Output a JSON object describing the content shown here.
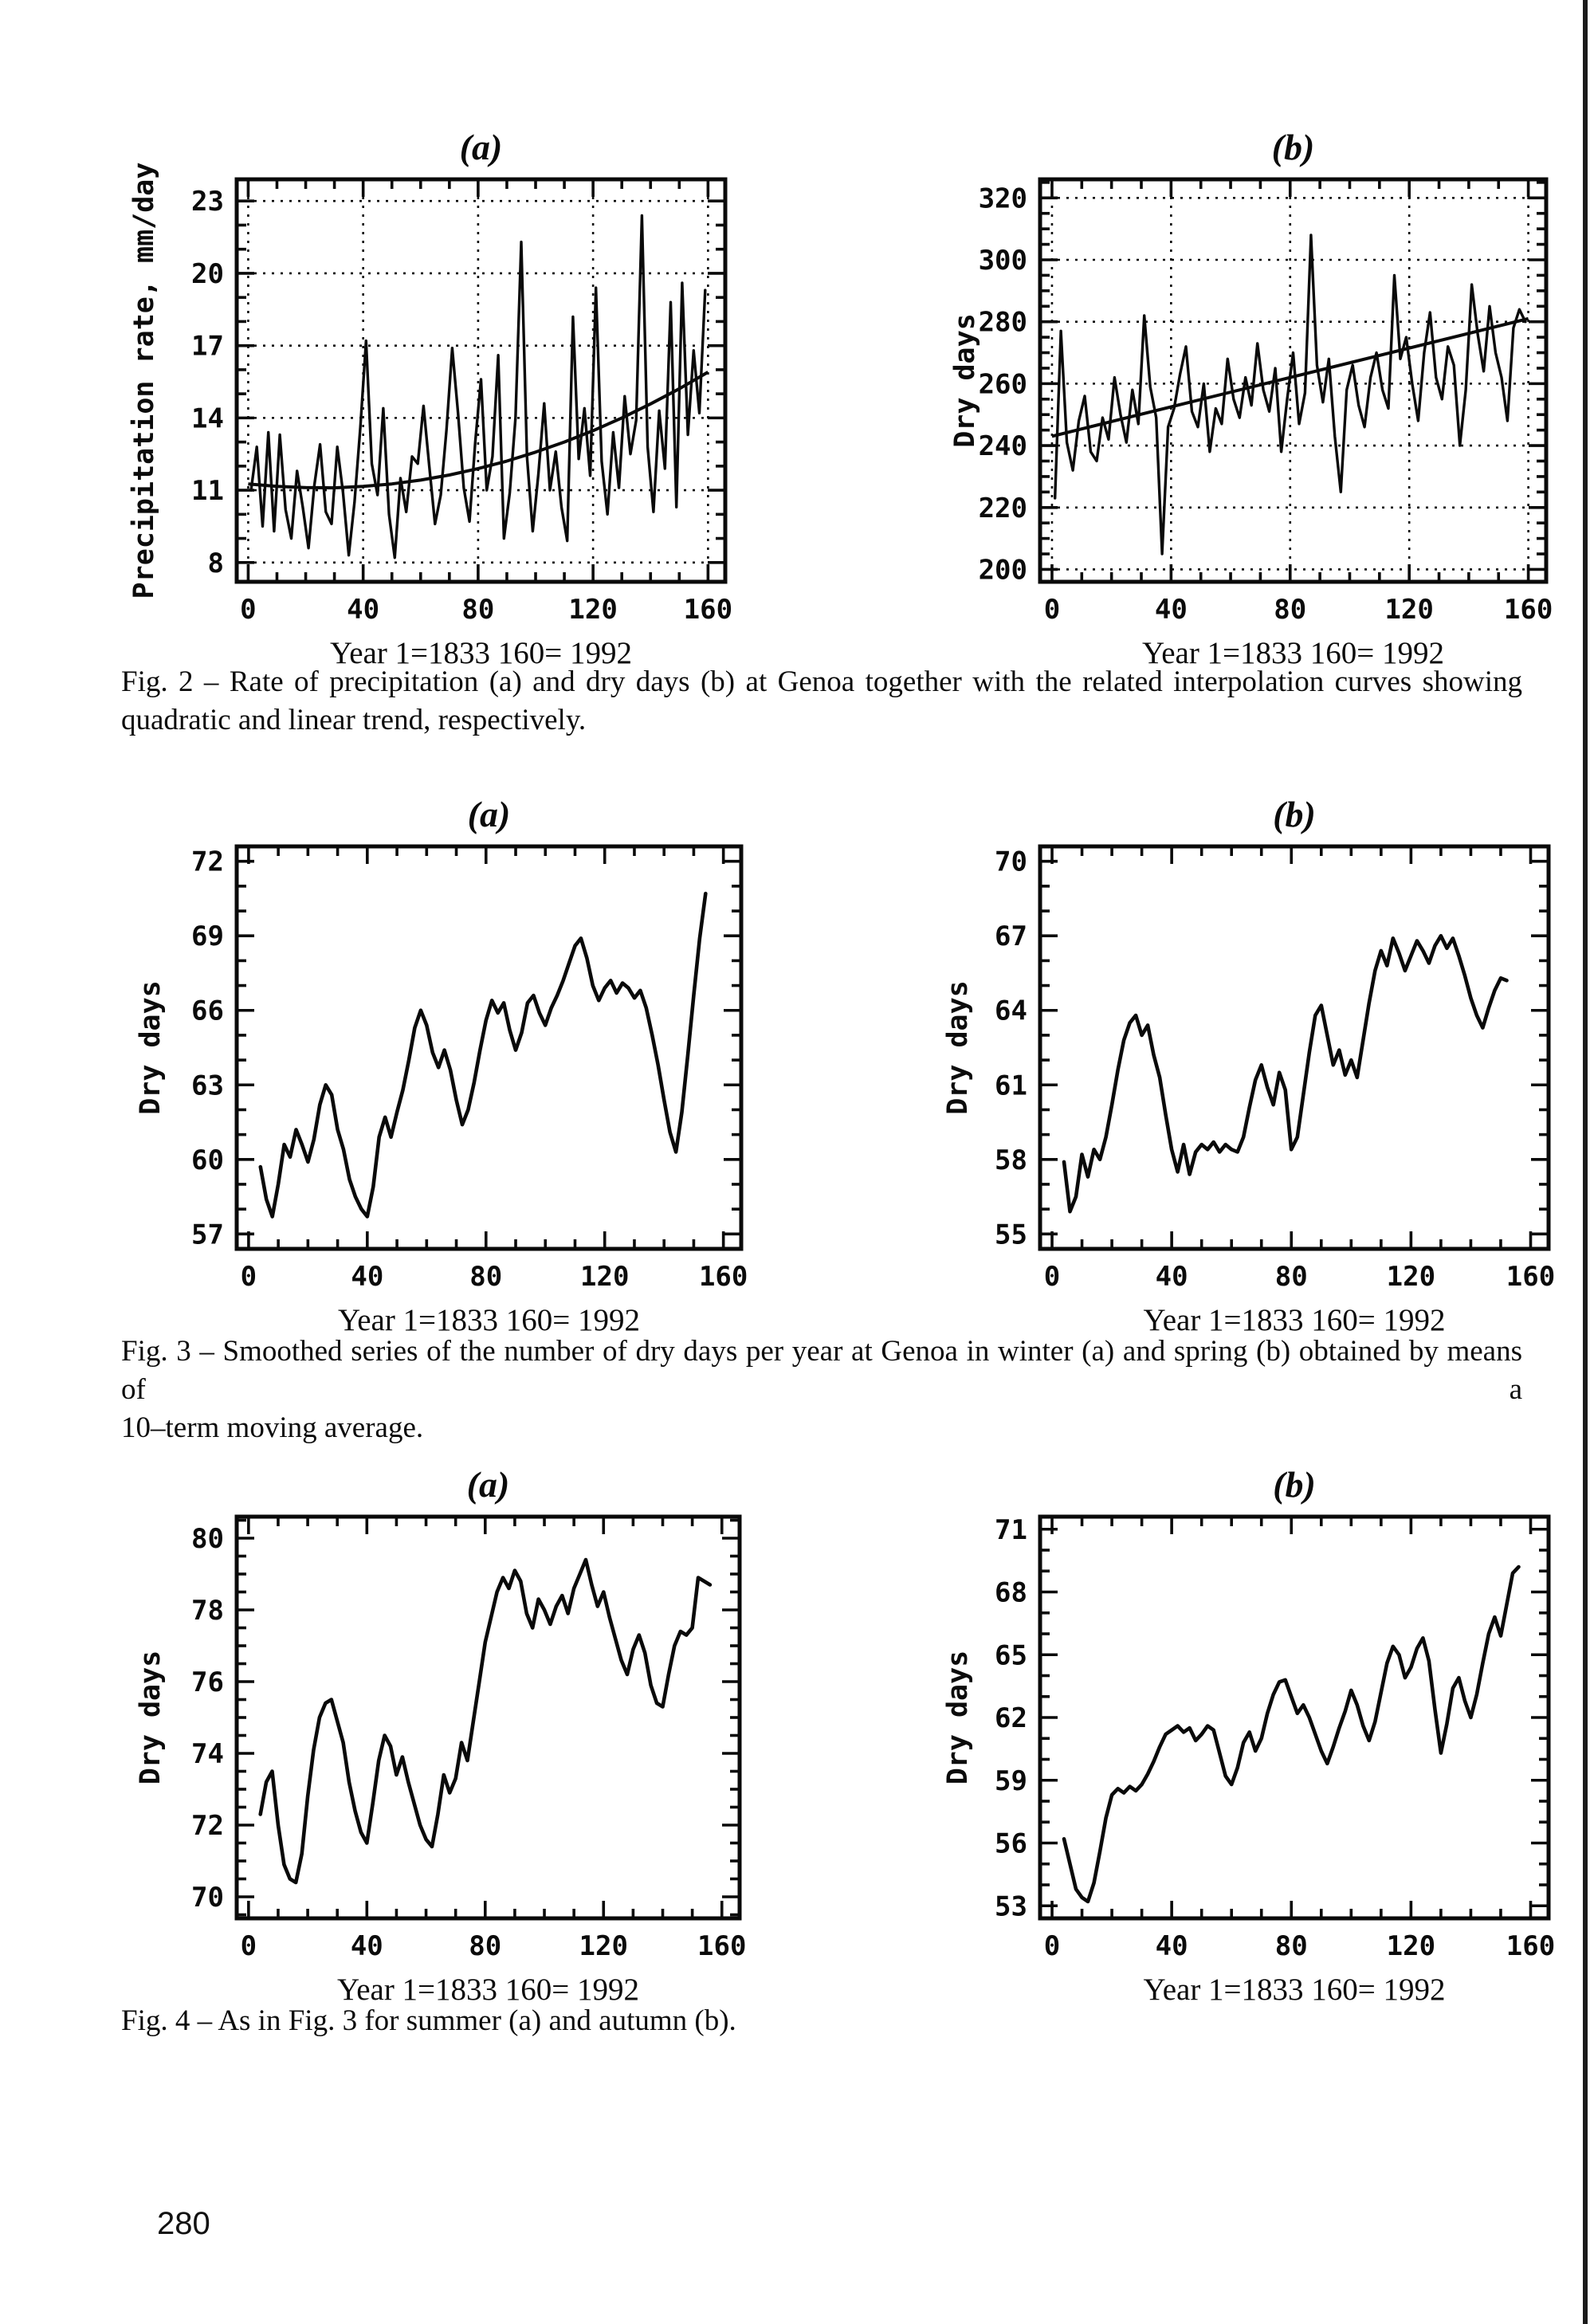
{
  "page": {
    "number": "280"
  },
  "captions": {
    "fig2": [
      "Fig. 2 –  Rate of precipitation (a) and dry days (b) at Genoa together with the related interpolation curves showing",
      "quadratic and linear trend, respectively."
    ],
    "fig3": [
      "Fig. 3 – Smoothed series of the number of dry days per year at Genoa in winter (a) and spring (b) obtained by means of a",
      "10–term moving average."
    ],
    "fig4": [
      "Fig. 4 – As in Fig. 3 for summer (a) and autumn (b)."
    ]
  },
  "ink_color": "#0a0a0a",
  "chart_data": [
    {
      "id": "fig2a",
      "type": "line",
      "panel_label": "(a)",
      "ylabel": "Precipitation rate, mm/day",
      "xlabel": "Year 1=1833 160= 1992",
      "ylim": [
        7.2,
        23.9
      ],
      "xlim": [
        -4,
        166
      ],
      "yticks": [
        8,
        11,
        14,
        17,
        20,
        23
      ],
      "xticks": [
        0,
        40,
        80,
        120,
        160
      ],
      "y_minor_step": 1,
      "x_minor_step": 10,
      "grid": true,
      "series": {
        "name": "annual precipitation rate",
        "x0": 1,
        "dx": 2,
        "values": [
          11.0,
          12.8,
          9.5,
          13.4,
          9.3,
          13.3,
          10.2,
          9.0,
          11.8,
          10.3,
          8.6,
          11.2,
          12.9,
          10.1,
          9.6,
          12.8,
          10.9,
          8.3,
          10.5,
          13.6,
          17.2,
          12.1,
          10.8,
          14.4,
          10.0,
          8.2,
          11.5,
          10.1,
          12.4,
          12.1,
          14.5,
          12.0,
          9.6,
          10.8,
          13.5,
          16.9,
          14.2,
          11.1,
          9.7,
          13.0,
          15.6,
          11.0,
          12.4,
          16.6,
          9.0,
          10.9,
          14.0,
          21.3,
          12.4,
          9.3,
          11.7,
          14.6,
          11.0,
          12.6,
          10.3,
          8.9,
          18.2,
          12.3,
          14.4,
          11.6,
          19.4,
          12.2,
          10.0,
          13.4,
          11.1,
          14.9,
          12.5,
          13.9,
          22.4,
          12.8,
          10.1,
          14.3,
          11.9,
          18.8,
          10.3,
          19.6,
          13.3,
          16.8,
          14.2,
          19.3
        ]
      },
      "trend": {
        "name": "quadratic trend",
        "x": [
          0,
          10,
          20,
          30,
          40,
          50,
          60,
          70,
          80,
          90,
          100,
          110,
          120,
          130,
          140,
          150,
          160
        ],
        "y": [
          11.26,
          11.16,
          11.11,
          11.1,
          11.16,
          11.26,
          11.42,
          11.63,
          11.9,
          12.21,
          12.58,
          13.0,
          13.47,
          14.0,
          14.58,
          15.21,
          15.9
        ]
      }
    },
    {
      "id": "fig2b",
      "type": "line",
      "panel_label": "(b)",
      "ylabel": "Dry days",
      "xlabel": "Year 1=1833 160= 1992",
      "ylim": [
        196,
        326
      ],
      "xlim": [
        -4,
        166
      ],
      "yticks": [
        200,
        220,
        240,
        260,
        280,
        300,
        320
      ],
      "xticks": [
        0,
        40,
        80,
        120,
        160
      ],
      "y_minor_step": 5,
      "x_minor_step": 10,
      "grid": true,
      "series": {
        "name": "annual dry days",
        "x0": 1,
        "dx": 2,
        "values": [
          223,
          277,
          241,
          232,
          248,
          256,
          238,
          235,
          249,
          242,
          262,
          250,
          241,
          258,
          247,
          282,
          259,
          249,
          205,
          246,
          252,
          263,
          272,
          251,
          246,
          260,
          238,
          252,
          247,
          268,
          255,
          249,
          262,
          253,
          273,
          258,
          251,
          265,
          238,
          255,
          270,
          247,
          257,
          308,
          266,
          254,
          268,
          243,
          225,
          258,
          266,
          253,
          246,
          262,
          270,
          258,
          252,
          295,
          268,
          275,
          260,
          248,
          270,
          283,
          262,
          255,
          272,
          266,
          240,
          258,
          292,
          276,
          264,
          285,
          270,
          262,
          248,
          278,
          284,
          280
        ]
      },
      "trend": {
        "name": "linear trend",
        "x": [
          0,
          160
        ],
        "y": [
          243,
          281
        ]
      }
    },
    {
      "id": "fig3a",
      "type": "line",
      "panel_label": "(a)",
      "ylabel": "Dry days",
      "xlabel": "Year 1=1833 160= 1992",
      "ylim": [
        56.4,
        72.6
      ],
      "xlim": [
        -4,
        166
      ],
      "yticks": [
        57,
        60,
        63,
        66,
        69,
        72
      ],
      "xticks": [
        0,
        40,
        80,
        120,
        160
      ],
      "y_minor_step": 1,
      "x_minor_step": 10,
      "grid": false,
      "series": {
        "name": "winter dry days (10-term moving average)",
        "x0": 4,
        "dx": 2,
        "values": [
          59.7,
          58.4,
          57.7,
          59.0,
          60.6,
          60.1,
          61.2,
          60.6,
          59.9,
          60.8,
          62.2,
          63.0,
          62.6,
          61.2,
          60.4,
          59.2,
          58.5,
          58.0,
          57.7,
          58.9,
          60.9,
          61.7,
          60.9,
          61.9,
          62.8,
          64.0,
          65.3,
          66.0,
          65.4,
          64.3,
          63.7,
          64.4,
          63.6,
          62.4,
          61.4,
          62.0,
          63.1,
          64.4,
          65.6,
          66.4,
          65.9,
          66.3,
          65.2,
          64.4,
          65.1,
          66.3,
          66.6,
          65.9,
          65.4,
          66.1,
          66.6,
          67.2,
          67.9,
          68.6,
          68.9,
          68.1,
          67.0,
          66.4,
          66.9,
          67.2,
          66.7,
          67.1,
          66.9,
          66.5,
          66.8,
          66.1,
          65.0,
          63.8,
          62.4,
          61.1,
          60.3,
          61.9,
          64.2,
          66.6,
          68.9,
          70.7
        ]
      },
      "trend": null
    },
    {
      "id": "fig3b",
      "type": "line",
      "panel_label": "(b)",
      "ylabel": "Dry days",
      "xlabel": "Year 1=1833 160= 1992",
      "ylim": [
        54.4,
        70.6
      ],
      "xlim": [
        -4,
        166
      ],
      "yticks": [
        55,
        58,
        61,
        64,
        67,
        70
      ],
      "xticks": [
        0,
        40,
        80,
        120,
        160
      ],
      "y_minor_step": 1,
      "x_minor_step": 10,
      "grid": false,
      "series": {
        "name": "spring dry days (10-term moving average)",
        "x0": 4,
        "dx": 2,
        "values": [
          57.9,
          55.9,
          56.5,
          58.2,
          57.3,
          58.4,
          58.0,
          58.9,
          60.2,
          61.6,
          62.8,
          63.5,
          63.8,
          63.0,
          63.4,
          62.2,
          61.3,
          59.8,
          58.4,
          57.5,
          58.6,
          57.4,
          58.3,
          58.6,
          58.4,
          58.7,
          58.3,
          58.6,
          58.4,
          58.3,
          58.9,
          60.1,
          61.2,
          61.8,
          60.9,
          60.2,
          61.5,
          60.8,
          58.4,
          58.9,
          60.6,
          62.3,
          63.8,
          64.2,
          63.0,
          61.8,
          62.4,
          61.4,
          62.0,
          61.3,
          62.8,
          64.3,
          65.6,
          66.4,
          65.8,
          66.9,
          66.3,
          65.6,
          66.2,
          66.8,
          66.4,
          65.9,
          66.6,
          67.0,
          66.5,
          66.9,
          66.2,
          65.4,
          64.5,
          63.8,
          63.3,
          64.1,
          64.8,
          65.3,
          65.2
        ]
      },
      "trend": null
    },
    {
      "id": "fig4a",
      "type": "line",
      "panel_label": "(a)",
      "ylabel": "Dry days",
      "xlabel": "Year 1=1833 160= 1992",
      "ylim": [
        69.4,
        80.6
      ],
      "xlim": [
        -4,
        166
      ],
      "yticks": [
        70,
        72,
        74,
        76,
        78,
        80
      ],
      "xticks": [
        0,
        40,
        80,
        120,
        160
      ],
      "y_minor_step": 0.5,
      "x_minor_step": 10,
      "grid": false,
      "series": {
        "name": "summer dry days (10-term moving average)",
        "x0": 4,
        "dx": 2,
        "values": [
          72.3,
          73.2,
          73.5,
          72.0,
          70.9,
          70.5,
          70.4,
          71.2,
          72.8,
          74.1,
          75.0,
          75.4,
          75.5,
          74.9,
          74.3,
          73.2,
          72.4,
          71.8,
          71.5,
          72.6,
          73.8,
          74.5,
          74.2,
          73.4,
          73.9,
          73.2,
          72.6,
          72.0,
          71.6,
          71.4,
          72.3,
          73.4,
          72.9,
          73.3,
          74.3,
          73.8,
          74.9,
          76.0,
          77.1,
          77.8,
          78.5,
          78.9,
          78.6,
          79.1,
          78.8,
          77.9,
          77.5,
          78.3,
          78.0,
          77.6,
          78.1,
          78.4,
          77.9,
          78.6,
          79.0,
          79.4,
          78.7,
          78.1,
          78.5,
          77.8,
          77.2,
          76.6,
          76.2,
          76.9,
          77.3,
          76.8,
          75.9,
          75.4,
          75.3,
          76.2,
          77.0,
          77.4,
          77.3,
          77.5,
          78.9,
          78.8,
          78.7
        ]
      },
      "trend": null
    },
    {
      "id": "fig4b",
      "type": "line",
      "panel_label": "(b)",
      "ylabel": "Dry days",
      "xlabel": "Year 1=1833 160= 1992",
      "ylim": [
        52.4,
        71.6
      ],
      "xlim": [
        -4,
        166
      ],
      "yticks": [
        53,
        56,
        59,
        62,
        65,
        68,
        71
      ],
      "xticks": [
        0,
        40,
        80,
        120,
        160
      ],
      "y_minor_step": 1,
      "x_minor_step": 10,
      "grid": false,
      "series": {
        "name": "autumn dry days (10-term moving average)",
        "x0": 4,
        "dx": 2,
        "values": [
          56.2,
          55.0,
          53.8,
          53.4,
          53.2,
          54.1,
          55.6,
          57.2,
          58.3,
          58.6,
          58.4,
          58.7,
          58.5,
          58.8,
          59.3,
          59.9,
          60.6,
          61.2,
          61.4,
          61.6,
          61.3,
          61.5,
          60.9,
          61.2,
          61.6,
          61.4,
          60.3,
          59.2,
          58.8,
          59.6,
          60.8,
          61.3,
          60.4,
          61.0,
          62.2,
          63.1,
          63.7,
          63.8,
          63.0,
          62.2,
          62.6,
          62.0,
          61.2,
          60.4,
          59.8,
          60.6,
          61.5,
          62.3,
          63.3,
          62.6,
          61.6,
          60.9,
          61.8,
          63.2,
          64.6,
          65.4,
          65.0,
          63.9,
          64.4,
          65.3,
          65.8,
          64.7,
          62.4,
          60.3,
          61.7,
          63.4,
          63.9,
          62.8,
          62.0,
          63.1,
          64.6,
          66.0,
          66.8,
          65.9,
          67.4,
          68.9,
          69.2
        ]
      },
      "trend": null
    }
  ]
}
